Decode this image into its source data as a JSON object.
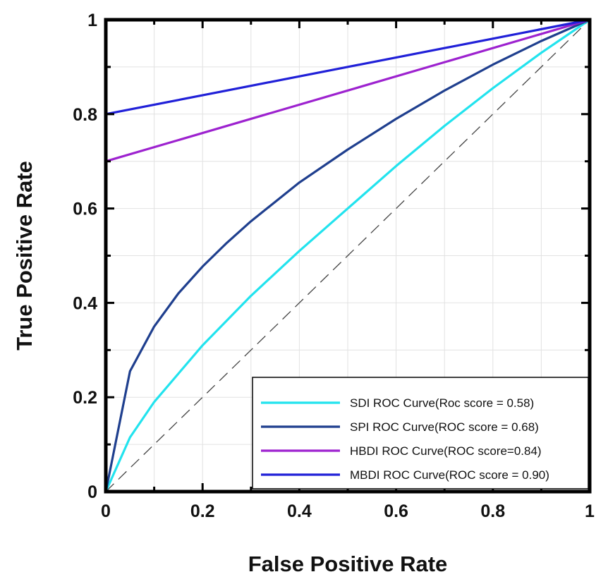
{
  "chart_data": {
    "type": "line",
    "title": "",
    "xlabel": "False Positive Rate",
    "ylabel": "True Positive Rate",
    "xlim": [
      0,
      1
    ],
    "ylim": [
      0,
      1
    ],
    "xticks": [
      0,
      0.2,
      0.4,
      0.6,
      0.8,
      1
    ],
    "yticks": [
      0,
      0.2,
      0.4,
      0.6,
      0.8,
      1
    ],
    "xtick_labels": [
      "0",
      "0.2",
      "0.4",
      "0.6",
      "0.8",
      "1"
    ],
    "ytick_labels": [
      "0",
      "0.2",
      "0.4",
      "0.6",
      "0.8",
      "1"
    ],
    "grid": true,
    "legend_position": "bottom-right",
    "reference_line": {
      "name": "Chance",
      "x": [
        0,
        1
      ],
      "y": [
        0,
        1
      ],
      "style": "dashed",
      "color": "#444444"
    },
    "series": [
      {
        "name": "SDI ROC Curve(Roc score = 0.58)",
        "color": "#22e3ee",
        "x": [
          0,
          0.05,
          0.1,
          0.2,
          0.3,
          0.4,
          0.5,
          0.6,
          0.7,
          0.8,
          0.9,
          1.0
        ],
        "y": [
          0,
          0.115,
          0.19,
          0.31,
          0.415,
          0.51,
          0.6,
          0.69,
          0.775,
          0.855,
          0.93,
          1.0
        ]
      },
      {
        "name": "SPI ROC Curve(ROC score = 0.68)",
        "color": "#1f3f8e",
        "x": [
          0,
          0.05,
          0.1,
          0.15,
          0.2,
          0.25,
          0.3,
          0.4,
          0.5,
          0.6,
          0.7,
          0.8,
          0.9,
          1.0
        ],
        "y": [
          0,
          0.255,
          0.35,
          0.42,
          0.477,
          0.527,
          0.573,
          0.655,
          0.725,
          0.79,
          0.85,
          0.905,
          0.955,
          1.0
        ]
      },
      {
        "name": "HBDI ROC Curve(ROC score=0.84)",
        "color": "#9d22cf",
        "x": [
          0,
          1
        ],
        "y": [
          0.7,
          1.0
        ]
      },
      {
        "name": "MBDI ROC Curve(ROC score = 0.90)",
        "color": "#2020d8",
        "x": [
          0,
          1
        ],
        "y": [
          0.8,
          1.0
        ]
      }
    ]
  }
}
